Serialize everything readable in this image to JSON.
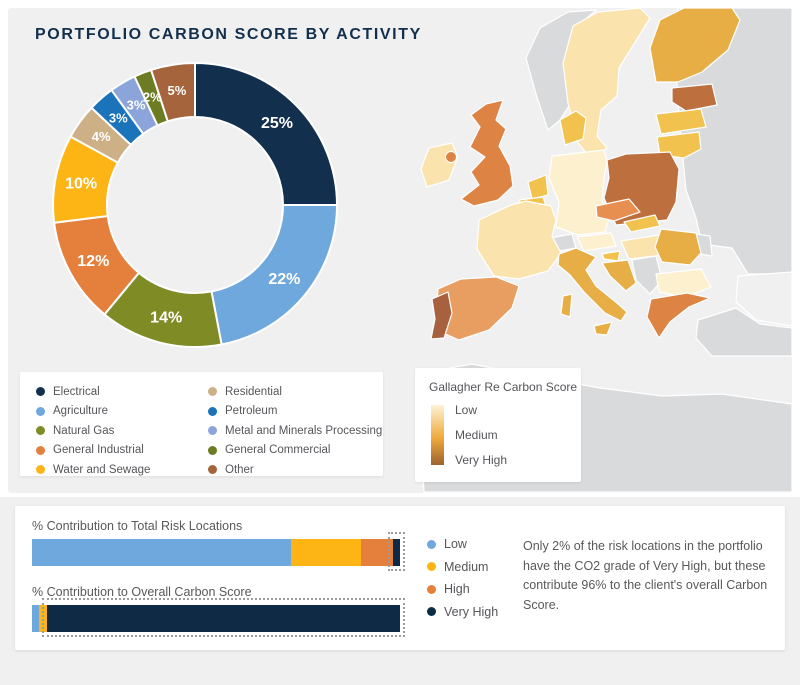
{
  "chart_data": [
    {
      "type": "pie",
      "donut": true,
      "title": "PORTFOLIO CARBON SCORE BY ACTIVITY",
      "start_angle_deg": 0,
      "direction": "clockwise",
      "categories": [
        "Electrical",
        "Agriculture",
        "Natural Gas",
        "General Industrial",
        "Water and Sewage",
        "Residential",
        "Petroleum",
        "Metal and Minerals Processing",
        "General Commercial",
        "Other"
      ],
      "values": [
        25,
        22,
        14,
        12,
        10,
        4,
        3,
        3,
        2,
        5
      ],
      "labels": [
        "25%",
        "22%",
        "14%",
        "12%",
        "10%",
        "4%",
        "3%",
        "3%",
        "2%",
        "5%"
      ],
      "unit": "%",
      "colors": [
        "#12304e",
        "#6fa8dc",
        "#7f8c26",
        "#e5803c",
        "#fcb515",
        "#cdb085",
        "#1b73b9",
        "#8ba4d9",
        "#6d7c22",
        "#a5643c"
      ],
      "title_color": "#12304e",
      "hole_color": "#ffffff"
    },
    {
      "type": "bar",
      "subtype": "stacked-horizontal-100pct",
      "bars": [
        {
          "label": "% Contribution to Total Risk Locations",
          "segments": {
            "low": 70.5,
            "medium": 19,
            "high": 8.5,
            "very_high": 2
          },
          "highlight": "very_high"
        },
        {
          "label": "% Contribution to Overall Carbon Score",
          "segments": {
            "low": 2,
            "medium": 2,
            "high": 0,
            "very_high": 96
          },
          "highlight": "very_high"
        }
      ],
      "legend": [
        {
          "key": "low",
          "label": "Low",
          "color": "#6fa8dc"
        },
        {
          "key": "medium",
          "label": "Medium",
          "color": "#fcb515"
        },
        {
          "key": "high",
          "label": "High",
          "color": "#e5803c"
        },
        {
          "key": "very_high",
          "label": "Very High",
          "color": "#0e2a45"
        }
      ],
      "note": "Only 2% of the risk locations in the portfolio have the CO2 grade of Very High, but these contribute 96% to the client's overall Carbon Score."
    },
    {
      "type": "heatmap",
      "subtype": "choropleth-europe",
      "legend_title": "Gallagher Re Carbon Score",
      "legend_labels": [
        "Low",
        "Medium",
        "Very High"
      ],
      "gradient": [
        "#fdf3d6",
        "#f0a93c",
        "#9c632e"
      ],
      "palette": {
        "lowest": "#fcf0cf",
        "low": "#fae3ac",
        "medium": "#f2c24f",
        "medium_high": "#e6ae45",
        "high": "#dd8445",
        "high_orange": "#e78f50",
        "high_soft": "#e89e61",
        "very_high": "#bd6f3e",
        "highest": "#a8613e",
        "none": "#d9dadc"
      },
      "regions": {
        "norway": "none",
        "sweden": "low",
        "finland": "medium_high",
        "estonia": "very_high",
        "latvia": "medium",
        "lithuania": "medium",
        "kaliningrad": "none",
        "russia-belarus-ukraine": "none",
        "moldova": "none",
        "poland": "very_high",
        "germany": "lowest",
        "denmark": "medium",
        "netherlands": "medium",
        "belgium": "medium",
        "united-kingdom": "high",
        "ireland": "low",
        "ireland-east": "high",
        "france": "low",
        "switzerland": "none",
        "austria": "lowest",
        "czechia": "high_orange",
        "slovakia": "medium",
        "hungary": "low",
        "slovenia": "medium",
        "croatia": "medium_high",
        "bosnia-serbia": "none",
        "romania": "medium_high",
        "bulgaria": "lowest",
        "greece": "high",
        "italy": "medium_high",
        "sardinia": "medium_high",
        "sicily": "medium_high",
        "spain": "high_soft",
        "portugal": "highest",
        "turkey": "none",
        "north-africa": "none"
      }
    }
  ]
}
